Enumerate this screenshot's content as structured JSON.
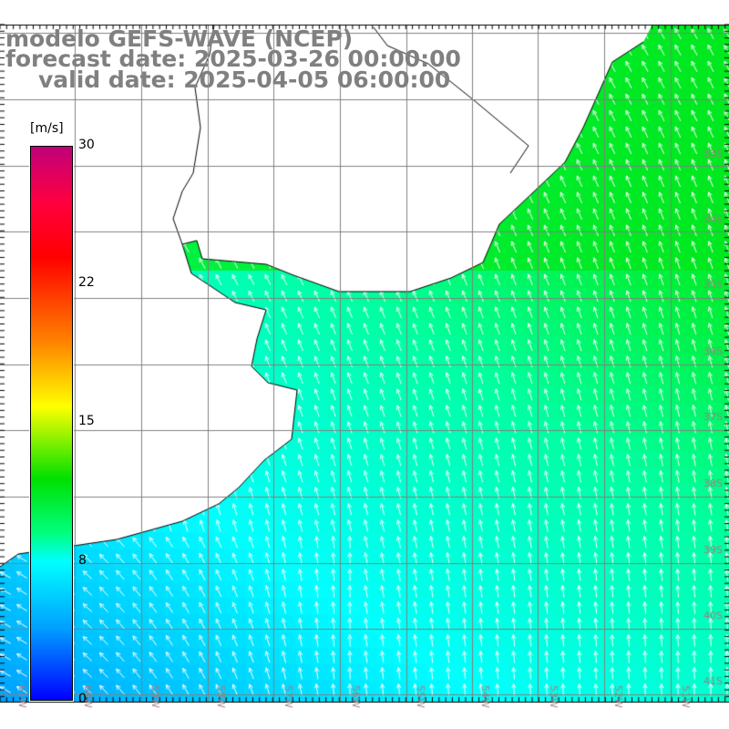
{
  "title": {
    "line1": "modelo GEFS-WAVE (NCEP)",
    "line2": "forecast date: 2025-03-26 00:00:00",
    "line3": "valid date: 2025-04-05 06:00:00"
  },
  "colorbar": {
    "unit": "[m/s]",
    "ticks": [
      "30",
      "22",
      "15",
      "8",
      "0"
    ],
    "colors": [
      "#c0007a",
      "#ff0000",
      "#ff8000",
      "#ffff00",
      "#00e000",
      "#00ffff",
      "#00a0ff",
      "#0000ff"
    ]
  },
  "axes": {
    "lon_labels": [
      "61W",
      "60W",
      "59W",
      "58W",
      "57W",
      "56W",
      "55W",
      "54W",
      "53W",
      "52W",
      "51W"
    ],
    "lat_labels": [
      "33S",
      "34S",
      "35S",
      "36S",
      "37S",
      "38S",
      "39S",
      "40S",
      "41S"
    ]
  },
  "colors": {
    "land": "#ffffff",
    "grid": "#808080",
    "coast": "#000000",
    "arrows": "#ffffff",
    "label": "#a08080"
  }
}
